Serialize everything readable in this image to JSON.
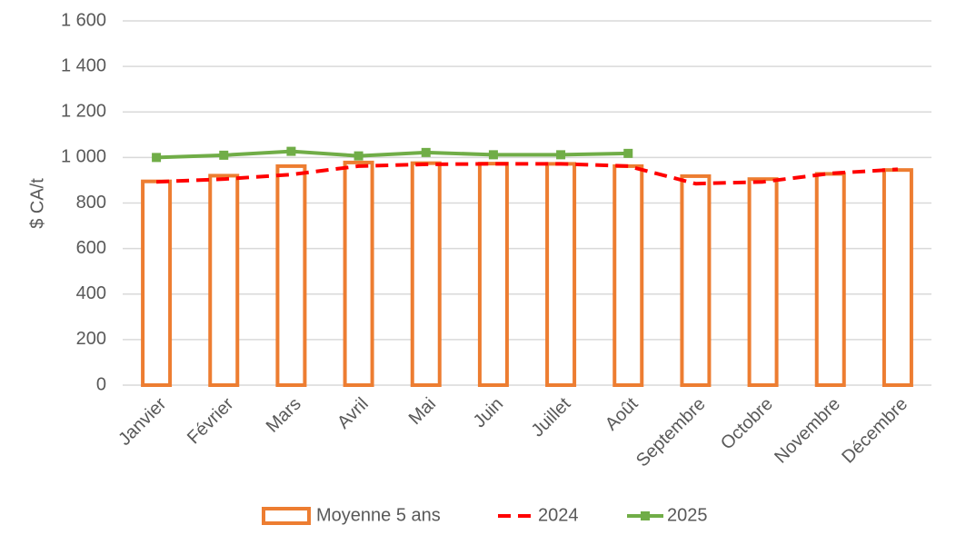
{
  "chart_data": {
    "type": "bar_line",
    "y_label": "$ CA/t",
    "categories": [
      "Janvier",
      "Février",
      "Mars",
      "Avril",
      "Mai",
      "Juin",
      "Juillet",
      "Août",
      "Septembre",
      "Octobre",
      "Novembre",
      "Décembre"
    ],
    "series": [
      {
        "name": "Moyenne 5 ans",
        "type": "bar",
        "color": "#ed7d31",
        "values": [
          895,
          920,
          962,
          978,
          975,
          973,
          972,
          962,
          918,
          905,
          928,
          945
        ]
      },
      {
        "name": "2024",
        "type": "line",
        "dashed": true,
        "color": "#ff0000",
        "values": [
          893,
          905,
          925,
          962,
          970,
          972,
          972,
          962,
          885,
          893,
          930,
          948
        ]
      },
      {
        "name": "2025",
        "type": "line",
        "markers": true,
        "color": "#70ad47",
        "values": [
          1000,
          1010,
          1027,
          1007,
          1022,
          1012,
          1012,
          1018,
          null,
          null,
          null,
          null
        ]
      }
    ],
    "ylim": [
      0,
      1600
    ],
    "yticks": [
      0,
      200,
      400,
      600,
      800,
      {
        "value": 1000,
        "label": "1 000"
      },
      {
        "value": 1200,
        "label": "1 200"
      },
      {
        "value": 1400,
        "label": "1 400"
      },
      {
        "value": 1600,
        "label": "1 600"
      }
    ],
    "grid": true,
    "legend": "bottom"
  }
}
